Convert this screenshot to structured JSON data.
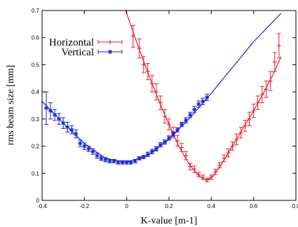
{
  "chart_data": {
    "type": "scatter",
    "xlabel": "K-value [m-1]",
    "ylabel": "rms beam size [mm]",
    "xlim": [
      -0.4,
      0.8
    ],
    "ylim": [
      0,
      0.7
    ],
    "x_ticks": [
      -0.4,
      -0.2,
      0,
      0.2,
      0.4,
      0.6,
      0.8
    ],
    "x_tick_labels": [
      "-0.4",
      "-0.2",
      "0",
      "0.2",
      "0.4",
      "0.6",
      "0.8"
    ],
    "y_ticks": [
      0,
      0.1,
      0.2,
      0.3,
      0.4,
      0.5,
      0.6,
      0.7
    ],
    "y_tick_labels": [
      "0",
      "0.1",
      "0.2",
      "0.3",
      "0.4",
      "0.5",
      "0.6",
      "0.7"
    ],
    "grid": false,
    "legend_position": "top-left",
    "series": [
      {
        "name": "Horizontal",
        "color": "#e8202a",
        "marker": "plus",
        "points": [
          {
            "x": 0.03,
            "y": 0.605,
            "err": 0.04
          },
          {
            "x": 0.06,
            "y": 0.56,
            "err": 0.035
          },
          {
            "x": 0.08,
            "y": 0.5,
            "err": 0.03
          },
          {
            "x": 0.1,
            "y": 0.475,
            "err": 0.03
          },
          {
            "x": 0.12,
            "y": 0.43,
            "err": 0.03
          },
          {
            "x": 0.14,
            "y": 0.4,
            "err": 0.03
          },
          {
            "x": 0.16,
            "y": 0.36,
            "err": 0.025
          },
          {
            "x": 0.18,
            "y": 0.31,
            "err": 0.025
          },
          {
            "x": 0.2,
            "y": 0.28,
            "err": 0.02
          },
          {
            "x": 0.22,
            "y": 0.25,
            "err": 0.02
          },
          {
            "x": 0.24,
            "y": 0.22,
            "err": 0.02
          },
          {
            "x": 0.26,
            "y": 0.195,
            "err": 0.015
          },
          {
            "x": 0.28,
            "y": 0.165,
            "err": 0.015
          },
          {
            "x": 0.3,
            "y": 0.125,
            "err": 0.012
          },
          {
            "x": 0.32,
            "y": 0.115,
            "err": 0.012
          },
          {
            "x": 0.34,
            "y": 0.095,
            "err": 0.008
          },
          {
            "x": 0.36,
            "y": 0.085,
            "err": 0.008
          },
          {
            "x": 0.38,
            "y": 0.075,
            "err": 0.006
          },
          {
            "x": 0.4,
            "y": 0.085,
            "err": 0.008
          },
          {
            "x": 0.42,
            "y": 0.105,
            "err": 0.01
          },
          {
            "x": 0.44,
            "y": 0.13,
            "err": 0.01
          },
          {
            "x": 0.46,
            "y": 0.155,
            "err": 0.012
          },
          {
            "x": 0.48,
            "y": 0.175,
            "err": 0.015
          },
          {
            "x": 0.5,
            "y": 0.2,
            "err": 0.015
          },
          {
            "x": 0.52,
            "y": 0.225,
            "err": 0.02
          },
          {
            "x": 0.54,
            "y": 0.25,
            "err": 0.02
          },
          {
            "x": 0.56,
            "y": 0.275,
            "err": 0.02
          },
          {
            "x": 0.58,
            "y": 0.3,
            "err": 0.025
          },
          {
            "x": 0.6,
            "y": 0.33,
            "err": 0.025
          },
          {
            "x": 0.62,
            "y": 0.36,
            "err": 0.025
          },
          {
            "x": 0.64,
            "y": 0.39,
            "err": 0.03
          },
          {
            "x": 0.66,
            "y": 0.41,
            "err": 0.03
          },
          {
            "x": 0.68,
            "y": 0.44,
            "err": 0.035
          },
          {
            "x": 0.7,
            "y": 0.51,
            "err": 0.035
          },
          {
            "x": 0.72,
            "y": 0.57,
            "err": 0.045
          }
        ],
        "fit": [
          {
            "x": -0.005,
            "y": 0.7
          },
          {
            "x": 0.06,
            "y": 0.555
          },
          {
            "x": 0.12,
            "y": 0.43
          },
          {
            "x": 0.18,
            "y": 0.315
          },
          {
            "x": 0.24,
            "y": 0.21
          },
          {
            "x": 0.29,
            "y": 0.14
          },
          {
            "x": 0.33,
            "y": 0.1
          },
          {
            "x": 0.36,
            "y": 0.08
          },
          {
            "x": 0.38,
            "y": 0.075
          },
          {
            "x": 0.41,
            "y": 0.09
          },
          {
            "x": 0.45,
            "y": 0.135
          },
          {
            "x": 0.5,
            "y": 0.2
          },
          {
            "x": 0.55,
            "y": 0.265
          },
          {
            "x": 0.6,
            "y": 0.33
          },
          {
            "x": 0.65,
            "y": 0.4
          },
          {
            "x": 0.69,
            "y": 0.46
          },
          {
            "x": 0.73,
            "y": 0.53
          }
        ]
      },
      {
        "name": "Vertical",
        "color": "#1a22d6",
        "marker": "star",
        "points": [
          {
            "x": -0.38,
            "y": 0.34,
            "err": 0.06
          },
          {
            "x": -0.36,
            "y": 0.33,
            "err": 0.03
          },
          {
            "x": -0.34,
            "y": 0.315,
            "err": 0.02
          },
          {
            "x": -0.32,
            "y": 0.3,
            "err": 0.02
          },
          {
            "x": -0.3,
            "y": 0.285,
            "err": 0.02
          },
          {
            "x": -0.28,
            "y": 0.27,
            "err": 0.018
          },
          {
            "x": -0.26,
            "y": 0.26,
            "err": 0.015
          },
          {
            "x": -0.24,
            "y": 0.245,
            "err": 0.015
          },
          {
            "x": -0.22,
            "y": 0.21,
            "err": 0.012
          },
          {
            "x": -0.2,
            "y": 0.2,
            "err": 0.012
          },
          {
            "x": -0.18,
            "y": 0.19,
            "err": 0.01
          },
          {
            "x": -0.16,
            "y": 0.18,
            "err": 0.01
          },
          {
            "x": -0.14,
            "y": 0.165,
            "err": 0.01
          },
          {
            "x": -0.12,
            "y": 0.155,
            "err": 0.008
          },
          {
            "x": -0.1,
            "y": 0.15,
            "err": 0.008
          },
          {
            "x": -0.08,
            "y": 0.145,
            "err": 0.006
          },
          {
            "x": -0.06,
            "y": 0.145,
            "err": 0.006
          },
          {
            "x": -0.04,
            "y": 0.14,
            "err": 0.006
          },
          {
            "x": -0.02,
            "y": 0.14,
            "err": 0.006
          },
          {
            "x": 0.0,
            "y": 0.14,
            "err": 0.006
          },
          {
            "x": 0.02,
            "y": 0.14,
            "err": 0.006
          },
          {
            "x": 0.04,
            "y": 0.145,
            "err": 0.006
          },
          {
            "x": 0.06,
            "y": 0.155,
            "err": 0.006
          },
          {
            "x": 0.08,
            "y": 0.16,
            "err": 0.006
          },
          {
            "x": 0.1,
            "y": 0.17,
            "err": 0.008
          },
          {
            "x": 0.12,
            "y": 0.18,
            "err": 0.008
          },
          {
            "x": 0.14,
            "y": 0.19,
            "err": 0.008
          },
          {
            "x": 0.16,
            "y": 0.205,
            "err": 0.008
          },
          {
            "x": 0.18,
            "y": 0.215,
            "err": 0.008
          },
          {
            "x": 0.2,
            "y": 0.23,
            "err": 0.008
          },
          {
            "x": 0.22,
            "y": 0.245,
            "err": 0.008
          },
          {
            "x": 0.24,
            "y": 0.26,
            "err": 0.008
          },
          {
            "x": 0.26,
            "y": 0.28,
            "err": 0.008
          },
          {
            "x": 0.28,
            "y": 0.295,
            "err": 0.01
          },
          {
            "x": 0.3,
            "y": 0.315,
            "err": 0.01
          },
          {
            "x": 0.32,
            "y": 0.335,
            "err": 0.012
          },
          {
            "x": 0.34,
            "y": 0.355,
            "err": 0.012
          },
          {
            "x": 0.36,
            "y": 0.365,
            "err": 0.012
          },
          {
            "x": 0.38,
            "y": 0.38,
            "err": 0.012
          }
        ],
        "fit": [
          {
            "x": -0.4,
            "y": 0.365
          },
          {
            "x": -0.3,
            "y": 0.285
          },
          {
            "x": -0.2,
            "y": 0.21
          },
          {
            "x": -0.1,
            "y": 0.155
          },
          {
            "x": 0.0,
            "y": 0.14
          },
          {
            "x": 0.1,
            "y": 0.165
          },
          {
            "x": 0.2,
            "y": 0.225
          },
          {
            "x": 0.3,
            "y": 0.305
          },
          {
            "x": 0.4,
            "y": 0.395
          },
          {
            "x": 0.5,
            "y": 0.49
          },
          {
            "x": 0.6,
            "y": 0.585
          },
          {
            "x": 0.73,
            "y": 0.69
          }
        ]
      }
    ]
  }
}
